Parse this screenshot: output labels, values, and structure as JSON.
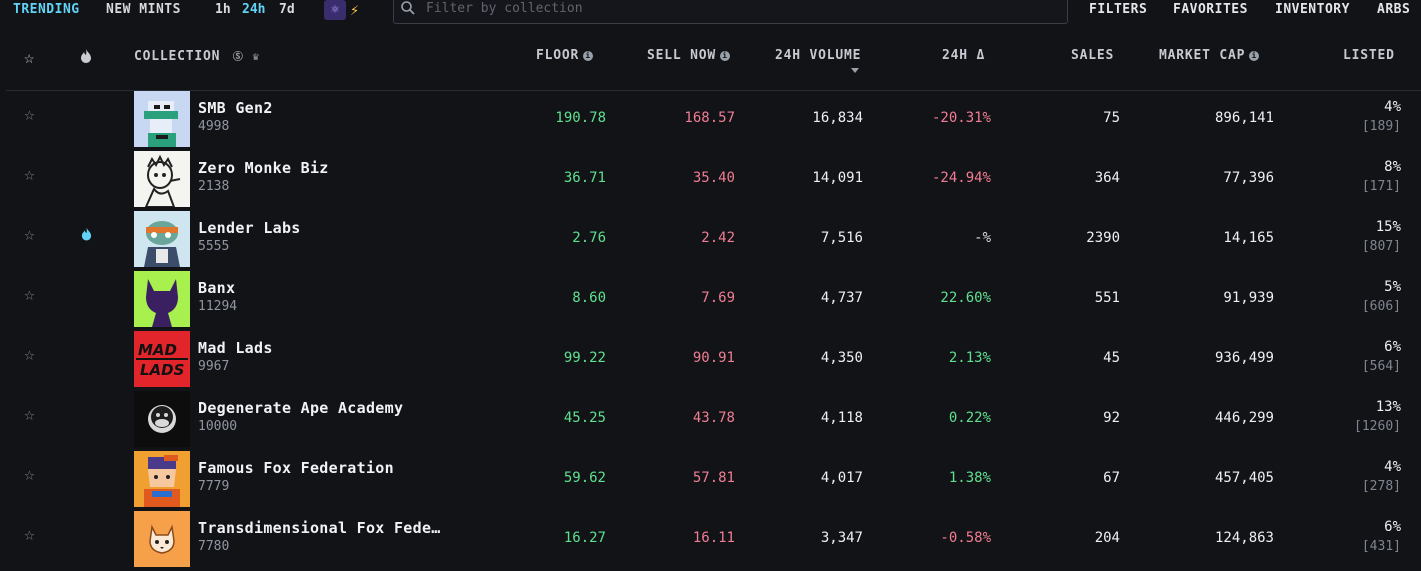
{
  "nav": {
    "trending": "TRENDING",
    "new_mints": "NEW MINTS",
    "time_1h": "1h",
    "time_24h": "24h",
    "time_7d": "7d",
    "filters": "FILTERS",
    "favorites": "FAVORITES",
    "inventory": "INVENTORY",
    "arbs": "ARBS"
  },
  "search": {
    "placeholder": "Filter by collection",
    "value": ""
  },
  "headers": {
    "collection": "COLLECTION",
    "floor": "FLOOR",
    "sell_now": "SELL NOW",
    "volume": "24H VOLUME",
    "change": "24H Δ",
    "sales": "SALES",
    "market_cap": "MARKET CAP",
    "listed": "LISTED"
  },
  "icons": {
    "atom": "⚛",
    "bolt": "⚡",
    "star": "☆",
    "solana": "Ⓢ",
    "crown": "♛"
  },
  "colors": {
    "accent": "#62d3f4",
    "positive": "#5fe08f",
    "negative": "#f07d93"
  },
  "rows": [
    {
      "name": "SMB Gen2",
      "supply": "4998",
      "floor": "190.78",
      "sell_now": "168.57",
      "volume": "16,834",
      "change": "-20.31%",
      "sales": "75",
      "market_cap": "896,141",
      "listed_pct": "4%",
      "listed_count": "[189]",
      "hot": false
    },
    {
      "name": "Zero Monke Biz",
      "supply": "2138",
      "floor": "36.71",
      "sell_now": "35.40",
      "volume": "14,091",
      "change": "-24.94%",
      "sales": "364",
      "market_cap": "77,396",
      "listed_pct": "8%",
      "listed_count": "[171]",
      "hot": false
    },
    {
      "name": "Lender Labs",
      "supply": "5555",
      "floor": "2.76",
      "sell_now": "2.42",
      "volume": "7,516",
      "change": "-%",
      "sales": "2390",
      "market_cap": "14,165",
      "listed_pct": "15%",
      "listed_count": "[807]",
      "hot": true
    },
    {
      "name": "Banx",
      "supply": "11294",
      "floor": "8.60",
      "sell_now": "7.69",
      "volume": "4,737",
      "change": "22.60%",
      "sales": "551",
      "market_cap": "91,939",
      "listed_pct": "5%",
      "listed_count": "[606]",
      "hot": false
    },
    {
      "name": "Mad Lads",
      "supply": "9967",
      "floor": "99.22",
      "sell_now": "90.91",
      "volume": "4,350",
      "change": "2.13%",
      "sales": "45",
      "market_cap": "936,499",
      "listed_pct": "6%",
      "listed_count": "[564]",
      "hot": false
    },
    {
      "name": "Degenerate Ape Academy",
      "supply": "10000",
      "floor": "45.25",
      "sell_now": "43.78",
      "volume": "4,118",
      "change": "0.22%",
      "sales": "92",
      "market_cap": "446,299",
      "listed_pct": "13%",
      "listed_count": "[1260]",
      "hot": false
    },
    {
      "name": "Famous Fox Federation",
      "supply": "7779",
      "floor": "59.62",
      "sell_now": "57.81",
      "volume": "4,017",
      "change": "1.38%",
      "sales": "67",
      "market_cap": "457,405",
      "listed_pct": "4%",
      "listed_count": "[278]",
      "hot": false
    },
    {
      "name": "Transdimensional Fox Fede…",
      "supply": "7780",
      "floor": "16.27",
      "sell_now": "16.11",
      "volume": "3,347",
      "change": "-0.58%",
      "sales": "204",
      "market_cap": "124,863",
      "listed_pct": "6%",
      "listed_count": "[431]",
      "hot": false
    }
  ]
}
